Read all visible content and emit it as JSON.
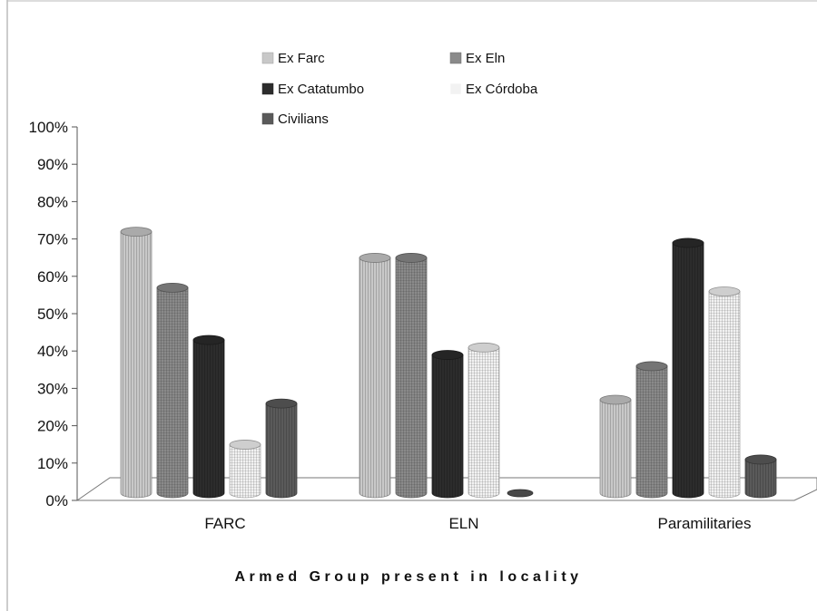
{
  "chart_data": {
    "type": "bar",
    "title": "",
    "xlabel": "Armed Group present in locality",
    "ylabel": "",
    "ylim": [
      0,
      100
    ],
    "y_ticks": [
      "0%",
      "10%",
      "20%",
      "30%",
      "40%",
      "50%",
      "60%",
      "70%",
      "80%",
      "90%",
      "100%"
    ],
    "categories": [
      "FARC",
      "ELN",
      "Paramilitaries"
    ],
    "series": [
      {
        "name": "Ex Farc",
        "values": [
          70,
          63,
          25
        ],
        "color": "#c8c8c8"
      },
      {
        "name": "Ex Eln",
        "values": [
          55,
          63,
          34
        ],
        "color": "#8a8a8a"
      },
      {
        "name": "Ex Catatumbo",
        "values": [
          41,
          37,
          67
        ],
        "color": "#2c2c2c"
      },
      {
        "name": "Ex Córdoba",
        "values": [
          13,
          39,
          54
        ],
        "color": "#f2f2f2"
      },
      {
        "name": "Civilians",
        "values": [
          24,
          0,
          9
        ],
        "color": "#5a5a5a"
      }
    ],
    "legend_position": "top",
    "grid": false
  }
}
